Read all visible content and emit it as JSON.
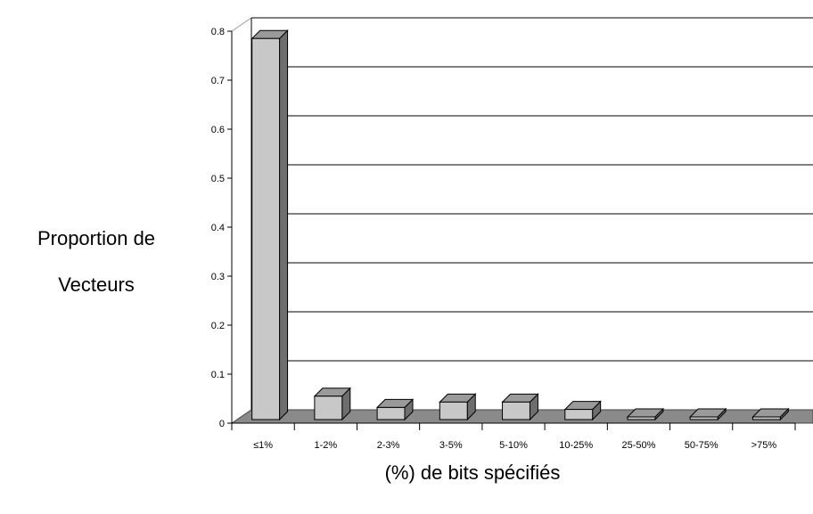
{
  "chart_data": {
    "type": "bar",
    "three_d": true,
    "categories": [
      "≤1%",
      "1-2%",
      "2-3%",
      "3-5%",
      "5-10%",
      "10-25%",
      "25-50%",
      "50-75%",
      ">75%"
    ],
    "values": [
      0.785,
      0.055,
      0.032,
      0.043,
      0.043,
      0.028,
      0.003,
      0.002,
      0.002
    ],
    "ylabel_lines": [
      "Proportion de",
      "Vecteurs"
    ],
    "xlabel": "(%) de bits spécifiés",
    "ylim": [
      0,
      0.8
    ],
    "yticks": [
      "0",
      "0.1",
      "0.2",
      "0.3",
      "0.4",
      "0.5",
      "0.6",
      "0.7",
      "0.8"
    ],
    "grid": true,
    "colors": {
      "bar_front": "#c8c8c8",
      "bar_top": "#9a9a9a",
      "bar_side": "#6e6e6e",
      "floor": "#8a8a8a",
      "gridline": "#000000",
      "back_wall": "#ffffff"
    }
  }
}
